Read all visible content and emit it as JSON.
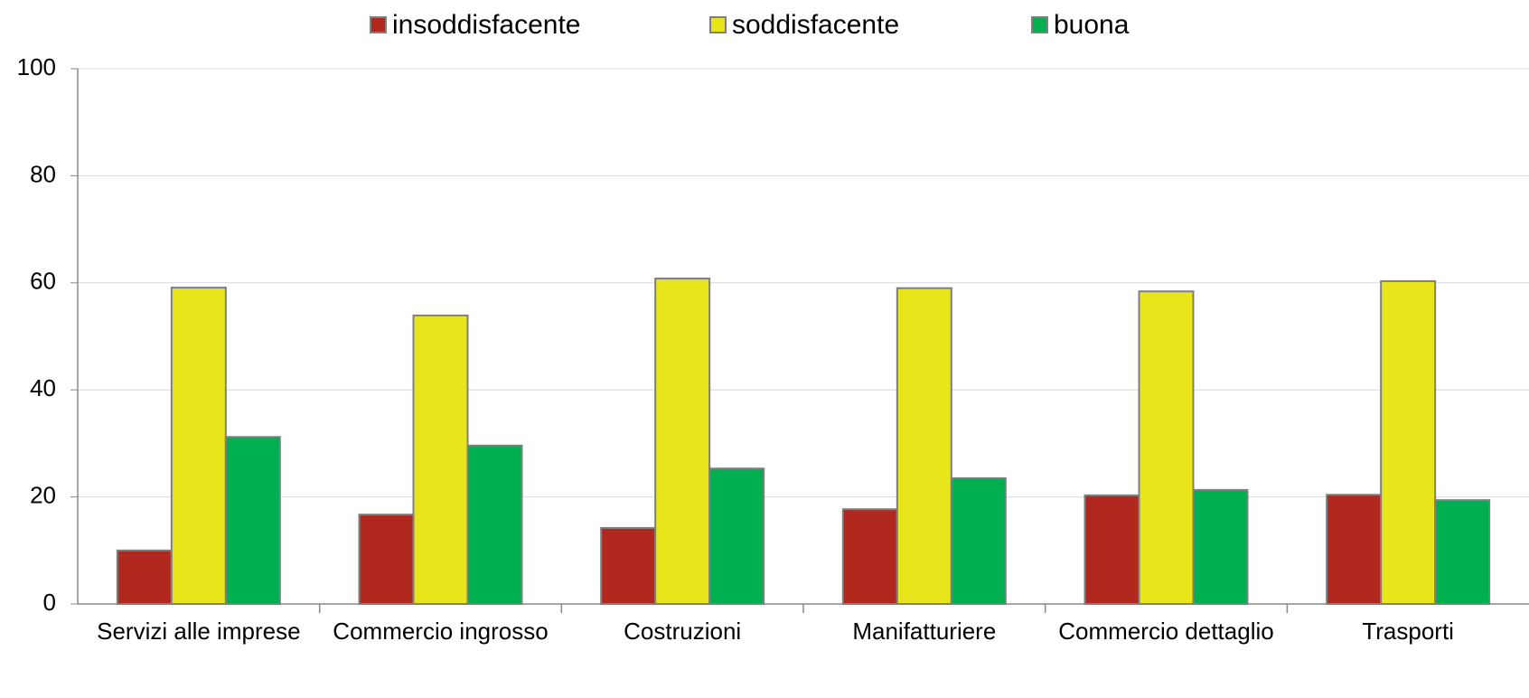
{
  "chart_data": {
    "type": "bar",
    "categories": [
      "Servizi alle imprese",
      "Commercio ingrosso",
      "Costruzioni",
      "Manifatturiere",
      "Commercio dettaglio",
      "Trasporti"
    ],
    "series": [
      {
        "name": "insoddisfacente",
        "color": "#b0281e",
        "values": [
          10.0,
          16.7,
          14.2,
          17.7,
          20.3,
          20.4
        ]
      },
      {
        "name": "soddisfacente",
        "color": "#e8e51a",
        "values": [
          59.1,
          53.9,
          60.8,
          59.0,
          58.4,
          60.3
        ]
      },
      {
        "name": "buona",
        "color": "#00b050",
        "values": [
          31.2,
          29.6,
          25.3,
          23.5,
          21.3,
          19.4
        ]
      }
    ],
    "ylim": [
      0,
      100
    ],
    "yticks": [
      0,
      20,
      40,
      60,
      80,
      100
    ],
    "grid": true
  }
}
